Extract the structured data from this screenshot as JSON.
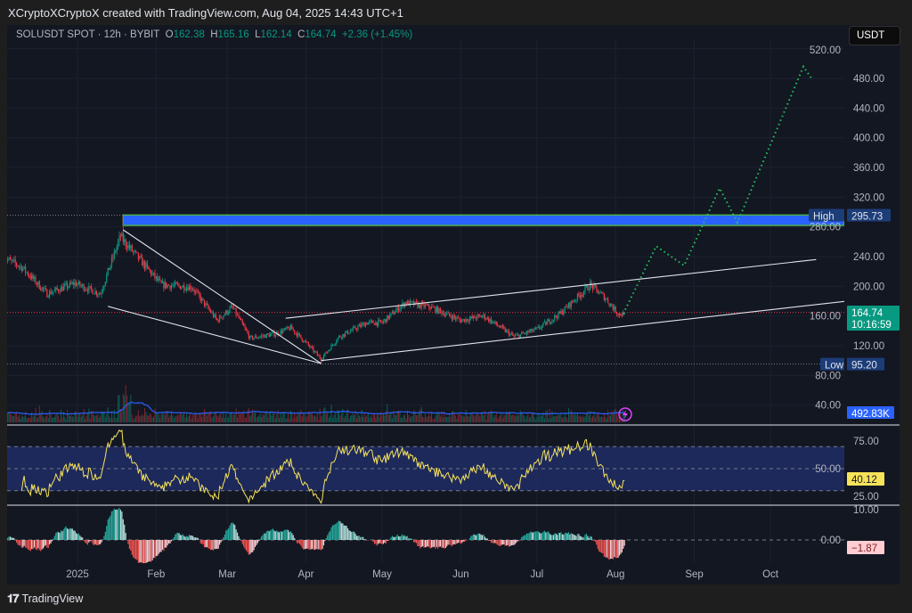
{
  "header": {
    "credit": "XCryptoXCryptoX created with TradingView.com, Aug 04, 2025 14:43 UTC+1",
    "symbol": "SOLUSDT SPOT · 12h · BYBIT",
    "open_label": "O",
    "open": "162.38",
    "high_label": "H",
    "high": "165.16",
    "low_label": "L",
    "low": "162.14",
    "close_label": "C",
    "close": "164.74",
    "change": "+2.36 (+1.45%)"
  },
  "currency_button": "USDT",
  "footer": {
    "logo_mark": "17",
    "brand": "TradingView"
  },
  "colors": {
    "up": "#089981",
    "down": "#f23645",
    "zone": "#2962ff",
    "projection": "#22c55e",
    "rsi": "#f7e35a",
    "volume_ma": "#2962ff",
    "background": "#131722"
  },
  "chart_data": {
    "type": "candlestick",
    "interval": "12h",
    "price_axis": {
      "ticks": [
        "520.00",
        "480.00",
        "440.00",
        "400.00",
        "360.00",
        "320.00",
        "280.00",
        "240.00",
        "200.00",
        "160.00",
        "120.00",
        "80.00",
        "40.00"
      ],
      "range": [
        40,
        520
      ]
    },
    "time_axis": {
      "ticks": [
        {
          "date": "2025-01-01",
          "label": "2025"
        },
        {
          "date": "2025-02-01",
          "label": "Feb"
        },
        {
          "date": "2025-03-01",
          "label": "Mar"
        },
        {
          "date": "2025-04-01",
          "label": "Apr"
        },
        {
          "date": "2025-05-01",
          "label": "May"
        },
        {
          "date": "2025-06-01",
          "label": "Jun"
        },
        {
          "date": "2025-07-01",
          "label": "Jul"
        },
        {
          "date": "2025-08-01",
          "label": "Aug"
        },
        {
          "date": "2025-09-01",
          "label": "Sep"
        },
        {
          "date": "2025-10-01",
          "label": "Oct"
        }
      ]
    },
    "price_keypoints": [
      [
        "2024-12-03",
        238
      ],
      [
        "2024-12-10",
        226
      ],
      [
        "2024-12-20",
        190
      ],
      [
        "2024-12-31",
        204
      ],
      [
        "2025-01-10",
        190
      ],
      [
        "2025-01-18",
        268
      ],
      [
        "2025-01-19",
        262
      ],
      [
        "2025-01-25",
        238
      ],
      [
        "2025-02-03",
        202
      ],
      [
        "2025-02-15",
        199
      ],
      [
        "2025-02-25",
        154
      ],
      [
        "2025-03-03",
        172
      ],
      [
        "2025-03-10",
        130
      ],
      [
        "2025-03-20",
        136
      ],
      [
        "2025-03-26",
        144
      ],
      [
        "2025-04-01",
        124
      ],
      [
        "2025-04-07",
        102
      ],
      [
        "2025-04-14",
        132
      ],
      [
        "2025-04-25",
        151
      ],
      [
        "2025-05-01",
        151
      ],
      [
        "2025-05-10",
        178
      ],
      [
        "2025-05-20",
        172
      ],
      [
        "2025-06-01",
        154
      ],
      [
        "2025-06-10",
        160
      ],
      [
        "2025-06-22",
        132
      ],
      [
        "2025-07-01",
        142
      ],
      [
        "2025-07-10",
        163
      ],
      [
        "2025-07-22",
        202
      ],
      [
        "2025-07-28",
        184
      ],
      [
        "2025-08-02",
        163
      ],
      [
        "2025-08-04",
        162.38
      ]
    ],
    "last_candle": {
      "open": 162.38,
      "high": 165.16,
      "low": 162.14,
      "close": 164.74
    },
    "high_marker": {
      "label": "High",
      "value": "295.73",
      "date": "2025-01-19"
    },
    "low_marker": {
      "label": "Low",
      "value": "95.20",
      "date": "2025-04-07"
    },
    "last_price": {
      "value": "164.74",
      "countdown": "10:16:59"
    },
    "resistance_zone": {
      "from": "2025-01-19",
      "top": 296,
      "bottom": 282
    },
    "trendlines": [
      {
        "name": "wedge-lower",
        "points": [
          [
            "2025-01-13",
            173
          ],
          [
            "2025-04-07",
            96
          ]
        ]
      },
      {
        "name": "wedge-upper",
        "points": [
          [
            "2025-01-19",
            276
          ],
          [
            "2025-04-07",
            96
          ]
        ]
      },
      {
        "name": "channel-upper",
        "points": [
          [
            "2025-03-24",
            157
          ],
          [
            "2025-10-19",
            236
          ]
        ]
      },
      {
        "name": "channel-lower",
        "points": [
          [
            "2025-04-07",
            100
          ],
          [
            "2025-10-31",
            180
          ]
        ]
      }
    ],
    "projection": [
      [
        "2025-08-04",
        163
      ],
      [
        "2025-08-17",
        254
      ],
      [
        "2025-08-28",
        228
      ],
      [
        "2025-09-11",
        332
      ],
      [
        "2025-09-18",
        286
      ],
      [
        "2025-10-14",
        496
      ],
      [
        "2025-10-17",
        481
      ]
    ],
    "volume": {
      "ma_value": "492.83K"
    },
    "rsi": {
      "ticks": [
        "75.00",
        "50.00",
        "25.00"
      ],
      "band": [
        30,
        70
      ],
      "value": "40.12"
    },
    "macd": {
      "ticks": [
        "10.00",
        "0.00"
      ],
      "value": "−1.87"
    }
  }
}
